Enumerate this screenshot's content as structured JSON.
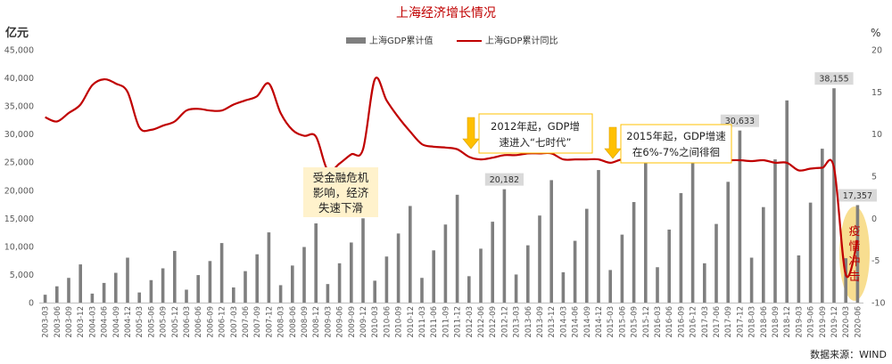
{
  "chart_data": {
    "type": "bar+line",
    "title": "上海经济增长情况",
    "y_left_label": "亿元",
    "y_right_label": "%",
    "y_left_range": [
      0,
      45000
    ],
    "y_right_range": [
      -10,
      20
    ],
    "y_left_ticks": [
      "0",
      "5,000",
      "10,000",
      "15,000",
      "20,000",
      "25,000",
      "30,000",
      "35,000",
      "40,000",
      "45,000"
    ],
    "y_right_ticks": [
      "-10",
      "-5",
      "0",
      "5",
      "10",
      "15",
      "20"
    ],
    "legend": [
      "上海GDP累计值",
      "上海GDP累计同比"
    ],
    "source": "数据来源：WIND",
    "colors": {
      "bar": "#7f7f7f",
      "line": "#c00000",
      "title": "#c00000",
      "annot_bg": "#fff2cc",
      "arrow": "#ffc000",
      "highlight": "#f7d87c"
    },
    "categories": [
      "2003-03",
      "2003-06",
      "2003-09",
      "2003-12",
      "2004-03",
      "2004-06",
      "2004-09",
      "2004-12",
      "2005-03",
      "2005-06",
      "2005-09",
      "2005-12",
      "2006-03",
      "2006-06",
      "2006-09",
      "2006-12",
      "2007-03",
      "2007-06",
      "2007-09",
      "2007-12",
      "2008-03",
      "2008-06",
      "2008-09",
      "2008-12",
      "2009-03",
      "2009-06",
      "2009-09",
      "2009-12",
      "2010-03",
      "2010-06",
      "2010-09",
      "2010-12",
      "2011-03",
      "2011-06",
      "2011-09",
      "2011-12",
      "2012-03",
      "2012-06",
      "2012-09",
      "2012-12",
      "2013-03",
      "2013-06",
      "2013-09",
      "2013-12",
      "2014-03",
      "2014-06",
      "2014-09",
      "2014-12",
      "2015-03",
      "2015-06",
      "2015-09",
      "2015-12",
      "2016-03",
      "2016-06",
      "2016-09",
      "2016-12",
      "2017-03",
      "2017-06",
      "2017-09",
      "2017-12",
      "2018-03",
      "2018-06",
      "2018-09",
      "2018-12",
      "2019-03",
      "2019-06",
      "2019-09",
      "2019-12",
      "2020-03",
      "2020-06"
    ],
    "gdp_cumulative": [
      1400,
      2900,
      4400,
      6800,
      1600,
      3500,
      5300,
      8000,
      1800,
      4000,
      6100,
      9200,
      2300,
      4900,
      7400,
      10600,
      2700,
      5600,
      8600,
      12500,
      3100,
      6600,
      9900,
      14100,
      3300,
      7000,
      10700,
      15000,
      3900,
      8200,
      12300,
      17200,
      4400,
      9300,
      13900,
      19200,
      4700,
      9600,
      14400,
      20182,
      5000,
      10200,
      15500,
      21800,
      5400,
      11000,
      16700,
      23600,
      5800,
      12100,
      17900,
      25100,
      6300,
      13000,
      19500,
      28200,
      7000,
      14000,
      21500,
      30633,
      8000,
      17000,
      25500,
      36000,
      8400,
      17800,
      27400,
      38155,
      7900,
      17357
    ],
    "gdp_yoy": [
      12.0,
      11.5,
      12.5,
      13.5,
      15.8,
      16.5,
      16.0,
      15.0,
      10.8,
      10.5,
      11.0,
      11.5,
      12.8,
      13.0,
      12.8,
      12.8,
      13.5,
      14.0,
      14.5,
      16.0,
      12.5,
      10.5,
      9.8,
      9.7,
      5.7,
      6.5,
      7.6,
      8.2,
      16.5,
      14.0,
      12.0,
      10.3,
      8.8,
      8.5,
      8.4,
      8.2,
      7.3,
      7.0,
      7.2,
      7.5,
      7.5,
      7.7,
      7.7,
      7.7,
      7.0,
      7.0,
      7.0,
      7.0,
      6.6,
      7.0,
      6.8,
      6.9,
      6.7,
      6.7,
      6.7,
      6.8,
      6.9,
      6.9,
      6.9,
      6.9,
      6.8,
      6.9,
      6.6,
      6.6,
      5.7,
      5.9,
      6.0,
      6.0,
      -6.7,
      -2.6
    ],
    "value_labels": [
      {
        "category": "2012-12",
        "text": "20,182"
      },
      {
        "category": "2017-12",
        "text": "30,633"
      },
      {
        "category": "2019-12",
        "text": "38,155"
      },
      {
        "category": "2020-06",
        "text": "17,357"
      }
    ],
    "annotations": {
      "crisis": [
        "受金融危机",
        "影响，经济",
        "失速下滑"
      ],
      "seven": [
        "2012年起，GDP增",
        "速进入“七时代”"
      ],
      "six_seven": [
        "2015年起，GDP增速",
        "在6%-7%之间徘徊"
      ],
      "covid": [
        "疫",
        "情",
        "冲",
        "击"
      ]
    }
  }
}
